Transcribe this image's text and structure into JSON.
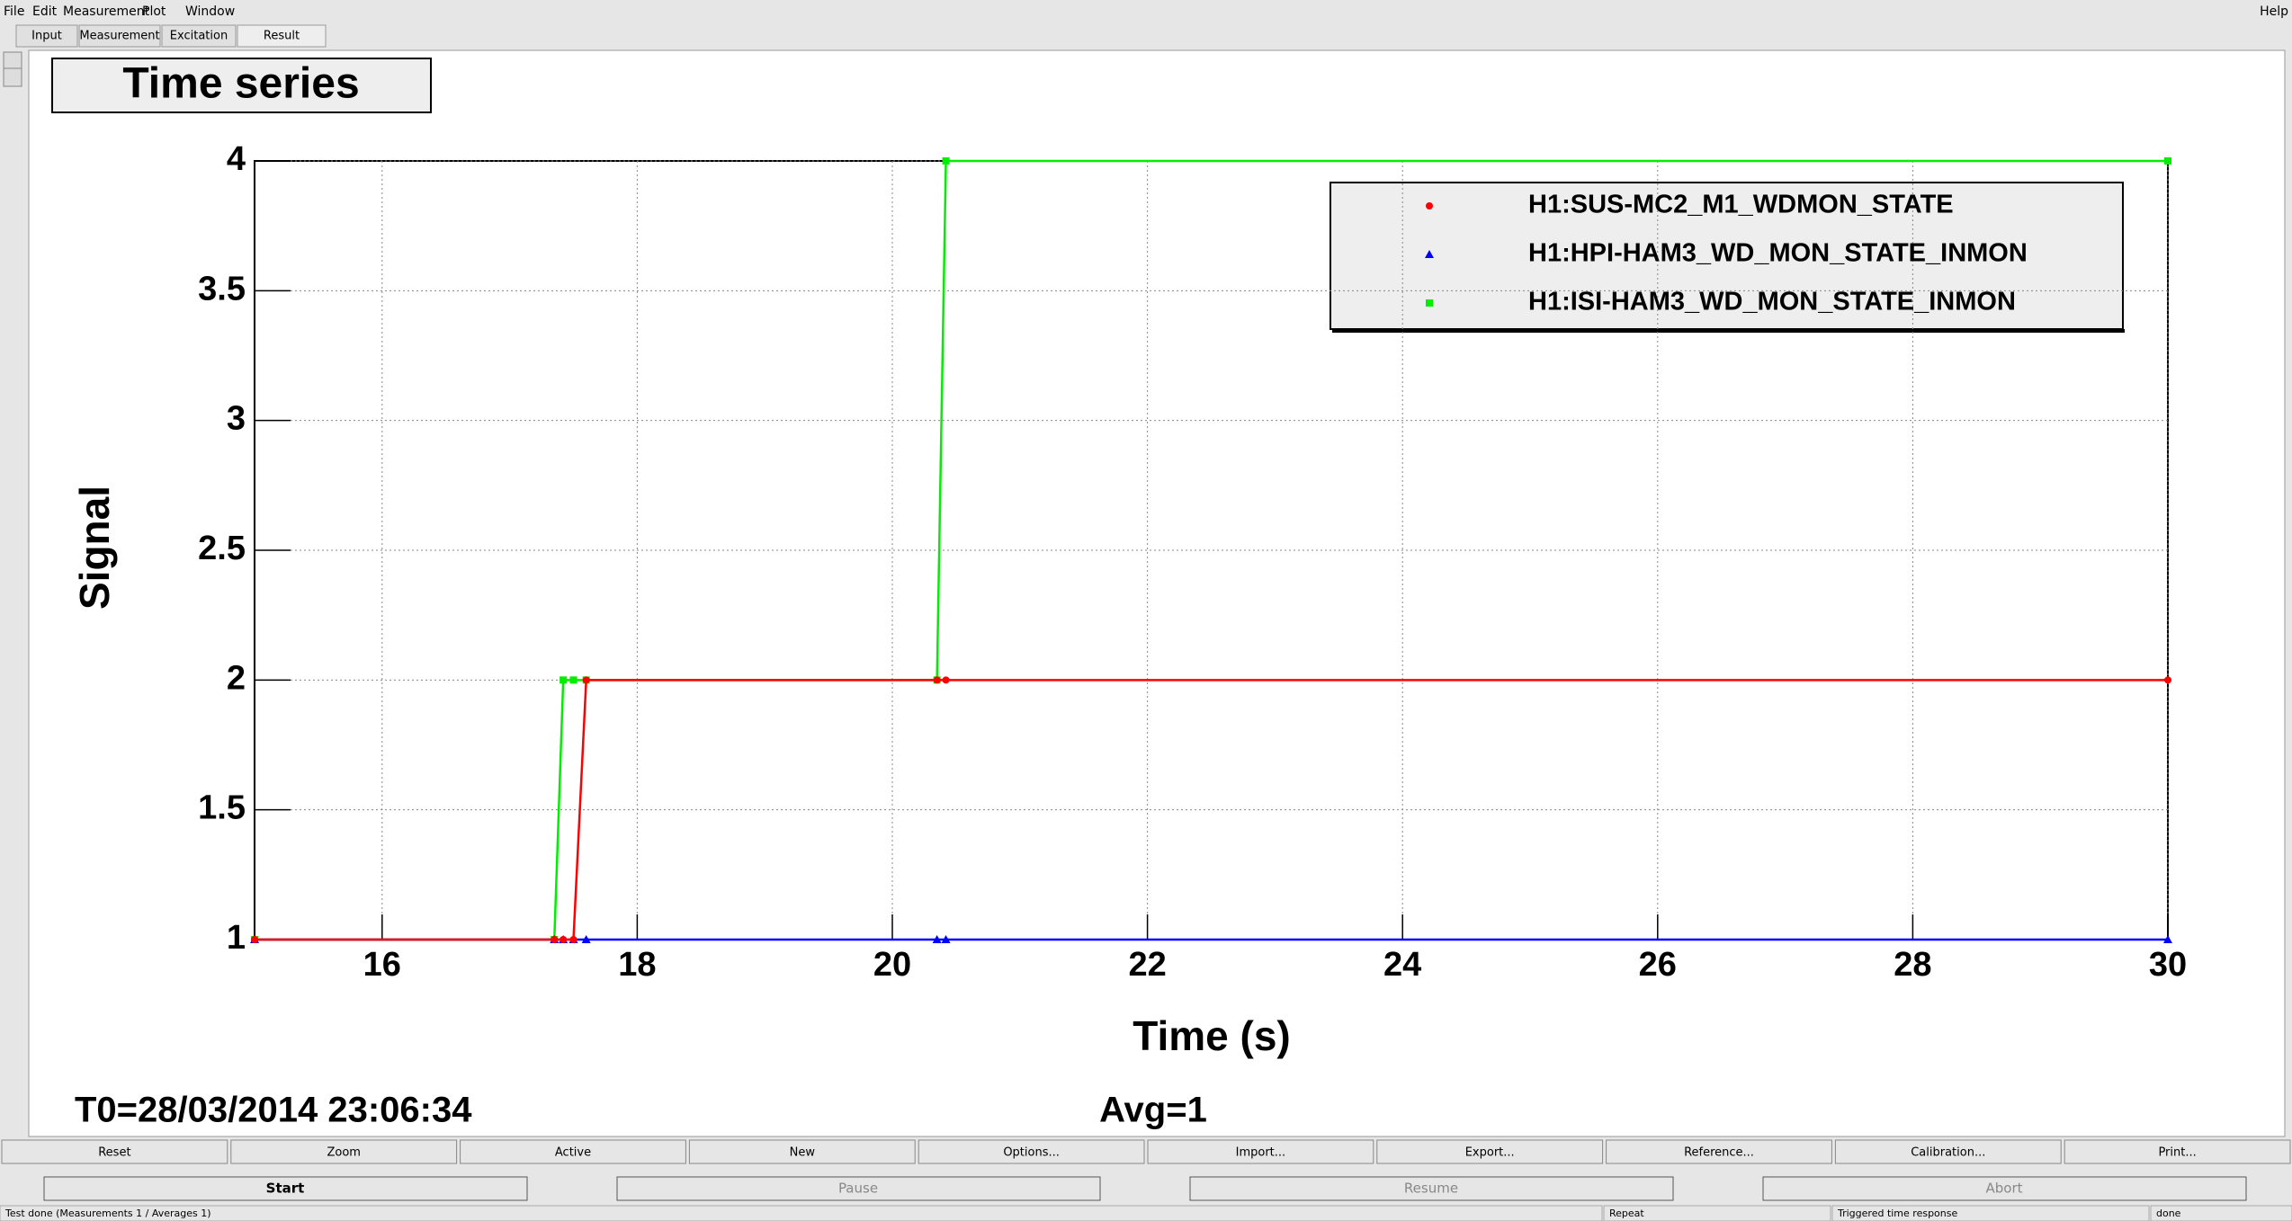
{
  "menu": {
    "items": [
      "File",
      "Edit",
      "Measurement",
      "Plot",
      "Window"
    ],
    "help": "Help"
  },
  "tabs": [
    "Input",
    "Measurement",
    "Excitation",
    "Result"
  ],
  "chart_data": {
    "type": "line",
    "title": "Time series",
    "x_label": "Time (s)",
    "y_label": "Signal",
    "x": [
      15,
      17.35,
      17.42,
      17.5,
      17.6,
      20.35,
      20.42,
      30
    ],
    "series": [
      {
        "name": "H1:SUS-MC2_M1_WDMON_STATE",
        "color": "#ff0000",
        "marker": "circle",
        "values": [
          1,
          1,
          1,
          1,
          2,
          2,
          2,
          2
        ]
      },
      {
        "name": "H1:HPI-HAM3_WD_MON_STATE_INMON",
        "color": "#0000ff",
        "marker": "triangle",
        "values": [
          1,
          1,
          1,
          1,
          1,
          1,
          1,
          1
        ]
      },
      {
        "name": "H1:ISI-HAM3_WD_MON_STATE_INMON",
        "color": "#00ee00",
        "marker": "square",
        "values": [
          1,
          1,
          2,
          2,
          2,
          2,
          4,
          4
        ]
      }
    ],
    "xlim": [
      15,
      30
    ],
    "xticks": [
      16,
      18,
      20,
      22,
      24,
      26,
      28,
      30
    ],
    "ylim": [
      1,
      4
    ],
    "yticks": [
      1,
      1.5,
      2,
      2.5,
      3,
      3.5,
      4
    ],
    "grid": true,
    "legend": "upper right",
    "t0": "T0=28/03/2014 23:06:34",
    "avg": "Avg=1"
  },
  "buttons": [
    "Reset",
    "Zoom",
    "Active",
    "New",
    "Options...",
    "Import...",
    "Export...",
    "Reference...",
    "Calibration...",
    "Print..."
  ],
  "controls": [
    "Start",
    "Pause",
    "Resume",
    "Abort"
  ],
  "status": [
    "Test done (Measurements 1 / Averages 1)",
    "Repeat",
    "Triggered time response",
    "done"
  ]
}
